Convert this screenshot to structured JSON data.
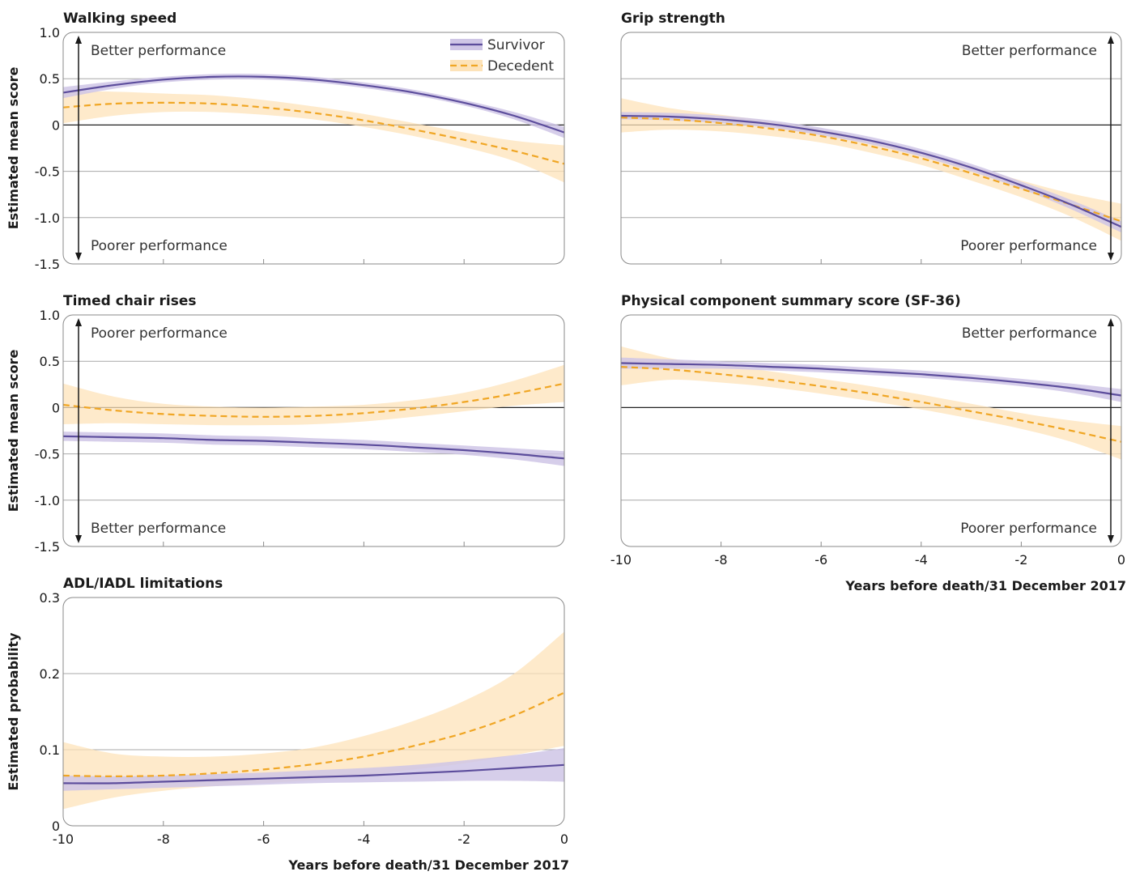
{
  "chart_data": [
    {
      "type": "line",
      "title": "Walking speed",
      "ylabel": "Estimated mean score",
      "xlabel": "",
      "xlim": [
        -10,
        0
      ],
      "ylim": [
        -1.5,
        1.0
      ],
      "y_ticks": [
        "1.0",
        "0.5",
        "0",
        "-0.5",
        "-1.0",
        "-1.5"
      ],
      "y_tick_values": [
        1.0,
        0.5,
        0,
        -0.5,
        -1.0,
        -1.5
      ],
      "x_ticks": [],
      "x_tick_marks": [
        -8,
        -6,
        -4,
        -2
      ],
      "grid": true,
      "arrow": "both",
      "annotations": {
        "top": "Better performance",
        "bottom": "Poorer performance",
        "side": "left"
      },
      "legend": {
        "position": "top-right",
        "entries": [
          "Survivor",
          "Decedent"
        ]
      },
      "series": [
        {
          "name": "Survivor",
          "x": [
            -10,
            -9,
            -8,
            -7,
            -6,
            -5,
            -4,
            -3,
            -2,
            -1,
            0
          ],
          "y": [
            0.35,
            0.43,
            0.49,
            0.52,
            0.52,
            0.49,
            0.43,
            0.35,
            0.24,
            0.1,
            -0.08
          ],
          "lower": [
            0.29,
            0.39,
            0.46,
            0.49,
            0.49,
            0.46,
            0.4,
            0.32,
            0.21,
            0.06,
            -0.14
          ],
          "upper": [
            0.41,
            0.47,
            0.52,
            0.55,
            0.55,
            0.52,
            0.46,
            0.38,
            0.27,
            0.14,
            -0.02
          ]
        },
        {
          "name": "Decedent",
          "x": [
            -10,
            -9,
            -8,
            -7,
            -6,
            -5,
            -4,
            -3,
            -2,
            -1,
            0
          ],
          "y": [
            0.19,
            0.23,
            0.24,
            0.23,
            0.19,
            0.13,
            0.05,
            -0.05,
            -0.16,
            -0.28,
            -0.42
          ],
          "lower": [
            0.02,
            0.1,
            0.14,
            0.14,
            0.11,
            0.06,
            -0.02,
            -0.12,
            -0.24,
            -0.39,
            -0.62
          ],
          "upper": [
            0.36,
            0.36,
            0.34,
            0.32,
            0.27,
            0.2,
            0.12,
            0.02,
            -0.08,
            -0.17,
            -0.22
          ]
        }
      ]
    },
    {
      "type": "line",
      "title": "Grip strength",
      "ylabel": "",
      "xlabel": "",
      "xlim": [
        -10,
        0
      ],
      "ylim": [
        -1.5,
        1.0
      ],
      "y_ticks": [],
      "y_tick_values": [],
      "x_ticks": [],
      "x_tick_marks": [
        -8,
        -6,
        -4,
        -2
      ],
      "grid": true,
      "arrow": "both",
      "annotations": {
        "top": "Better performance",
        "bottom": "Poorer performance",
        "side": "right"
      },
      "series": [
        {
          "name": "Survivor",
          "x": [
            -10,
            -9,
            -8,
            -7,
            -6,
            -5,
            -4,
            -3,
            -2,
            -1,
            0
          ],
          "y": [
            0.1,
            0.09,
            0.06,
            0.01,
            -0.07,
            -0.17,
            -0.3,
            -0.46,
            -0.65,
            -0.86,
            -1.1
          ],
          "lower": [
            0.06,
            0.05,
            0.02,
            -0.03,
            -0.11,
            -0.21,
            -0.34,
            -0.5,
            -0.69,
            -0.91,
            -1.16
          ],
          "upper": [
            0.14,
            0.13,
            0.1,
            0.05,
            -0.03,
            -0.13,
            -0.26,
            -0.42,
            -0.61,
            -0.81,
            -1.04
          ]
        },
        {
          "name": "Decedent",
          "x": [
            -10,
            -9,
            -8,
            -7,
            -6,
            -5,
            -4,
            -3,
            -2,
            -1,
            0
          ],
          "y": [
            0.08,
            0.06,
            0.02,
            -0.04,
            -0.12,
            -0.23,
            -0.36,
            -0.52,
            -0.69,
            -0.86,
            -1.04
          ],
          "lower": [
            -0.08,
            -0.05,
            -0.07,
            -0.12,
            -0.19,
            -0.3,
            -0.43,
            -0.6,
            -0.78,
            -0.99,
            -1.25
          ],
          "upper": [
            0.29,
            0.18,
            0.11,
            0.04,
            -0.05,
            -0.16,
            -0.29,
            -0.44,
            -0.6,
            -0.74,
            -0.85
          ]
        }
      ]
    },
    {
      "type": "line",
      "title": "Timed chair rises",
      "ylabel": "Estimated mean score",
      "xlabel": "",
      "xlim": [
        -10,
        0
      ],
      "ylim": [
        -1.5,
        1.0
      ],
      "y_ticks": [
        "1.0",
        "0.5",
        "0",
        "-0.5",
        "-1.0",
        "-1.5"
      ],
      "y_tick_values": [
        1.0,
        0.5,
        0,
        -0.5,
        -1.0,
        -1.5
      ],
      "x_ticks": [],
      "x_tick_marks": [
        -8,
        -6,
        -4,
        -2
      ],
      "grid": true,
      "arrow": "both",
      "annotations": {
        "top": "Poorer performance",
        "bottom": "Better performance",
        "side": "left"
      },
      "series": [
        {
          "name": "Survivor",
          "x": [
            -10,
            -9,
            -8,
            -7,
            -6,
            -5,
            -4,
            -3,
            -2,
            -1,
            0
          ],
          "y": [
            -0.31,
            -0.32,
            -0.33,
            -0.35,
            -0.36,
            -0.38,
            -0.4,
            -0.43,
            -0.46,
            -0.5,
            -0.55
          ],
          "lower": [
            -0.36,
            -0.37,
            -0.38,
            -0.4,
            -0.41,
            -0.43,
            -0.45,
            -0.48,
            -0.51,
            -0.56,
            -0.63
          ],
          "upper": [
            -0.26,
            -0.27,
            -0.28,
            -0.3,
            -0.31,
            -0.33,
            -0.35,
            -0.38,
            -0.41,
            -0.44,
            -0.47
          ]
        },
        {
          "name": "Decedent",
          "x": [
            -10,
            -9,
            -8,
            -7,
            -6,
            -5,
            -4,
            -3,
            -2,
            -1,
            0
          ],
          "y": [
            0.03,
            -0.03,
            -0.07,
            -0.09,
            -0.1,
            -0.09,
            -0.06,
            -0.01,
            0.06,
            0.15,
            0.26
          ],
          "lower": [
            -0.18,
            -0.17,
            -0.18,
            -0.19,
            -0.19,
            -0.18,
            -0.15,
            -0.1,
            -0.04,
            0.02,
            0.06
          ],
          "upper": [
            0.26,
            0.12,
            0.04,
            0.01,
            0.0,
            0.01,
            0.03,
            0.08,
            0.16,
            0.29,
            0.46
          ]
        }
      ]
    },
    {
      "type": "line",
      "title": "Physical component summary score (SF-36)",
      "ylabel": "",
      "xlabel": "Years before death/31 December 2017",
      "xlim": [
        -10,
        0
      ],
      "ylim": [
        -1.5,
        1.0
      ],
      "y_ticks": [],
      "y_tick_values": [],
      "x_ticks": [
        "-10",
        "-8",
        "-6",
        "-4",
        "-2",
        "0"
      ],
      "x_tick_marks": [
        -8,
        -6,
        -4,
        -2
      ],
      "grid": true,
      "arrow": "both",
      "annotations": {
        "top": "Better performance",
        "bottom": "Poorer performance",
        "side": "right"
      },
      "series": [
        {
          "name": "Survivor",
          "x": [
            -10,
            -9,
            -8,
            -7,
            -6,
            -5,
            -4,
            -3,
            -2,
            -1,
            0
          ],
          "y": [
            0.48,
            0.47,
            0.46,
            0.44,
            0.42,
            0.39,
            0.36,
            0.32,
            0.27,
            0.21,
            0.13
          ],
          "lower": [
            0.42,
            0.42,
            0.42,
            0.4,
            0.38,
            0.35,
            0.32,
            0.28,
            0.23,
            0.16,
            0.06
          ],
          "upper": [
            0.54,
            0.52,
            0.5,
            0.48,
            0.46,
            0.43,
            0.4,
            0.36,
            0.31,
            0.26,
            0.2
          ]
        },
        {
          "name": "Decedent",
          "x": [
            -10,
            -9,
            -8,
            -7,
            -6,
            -5,
            -4,
            -3,
            -2,
            -1,
            0
          ],
          "y": [
            0.44,
            0.41,
            0.36,
            0.3,
            0.23,
            0.15,
            0.06,
            -0.04,
            -0.14,
            -0.25,
            -0.37
          ],
          "lower": [
            0.24,
            0.3,
            0.27,
            0.22,
            0.15,
            0.07,
            -0.02,
            -0.12,
            -0.23,
            -0.37,
            -0.56
          ],
          "upper": [
            0.66,
            0.53,
            0.46,
            0.39,
            0.31,
            0.23,
            0.14,
            0.04,
            -0.06,
            -0.14,
            -0.2
          ]
        }
      ]
    },
    {
      "type": "line",
      "title": "ADL/IADL limitations",
      "ylabel": "Estimated probability",
      "xlabel": "Years before death/31 December 2017",
      "xlim": [
        -10,
        0
      ],
      "ylim": [
        0,
        0.3
      ],
      "y_ticks": [
        "0.3",
        "0.2",
        "0.1",
        "0"
      ],
      "y_tick_values": [
        0.3,
        0.2,
        0.1,
        0
      ],
      "x_ticks": [
        "-10",
        "-8",
        "-6",
        "-4",
        "-2",
        "0"
      ],
      "x_tick_marks": [
        -8,
        -6,
        -4,
        -2
      ],
      "grid": true,
      "arrow": "none",
      "series": [
        {
          "name": "Survivor",
          "x": [
            -10,
            -9,
            -8,
            -7,
            -6,
            -5,
            -4,
            -3,
            -2,
            -1,
            0
          ],
          "y": [
            0.056,
            0.056,
            0.058,
            0.06,
            0.062,
            0.064,
            0.066,
            0.069,
            0.072,
            0.076,
            0.08
          ],
          "lower": [
            0.046,
            0.048,
            0.05,
            0.052,
            0.054,
            0.056,
            0.057,
            0.058,
            0.059,
            0.059,
            0.058
          ],
          "upper": [
            0.066,
            0.065,
            0.066,
            0.068,
            0.07,
            0.073,
            0.076,
            0.08,
            0.086,
            0.093,
            0.102
          ]
        },
        {
          "name": "Decedent",
          "x": [
            -10,
            -9,
            -8,
            -7,
            -6,
            -5,
            -4,
            -3,
            -2,
            -1,
            0
          ],
          "y": [
            0.066,
            0.065,
            0.066,
            0.069,
            0.074,
            0.081,
            0.091,
            0.105,
            0.122,
            0.145,
            0.175
          ],
          "lower": [
            0.022,
            0.037,
            0.046,
            0.052,
            0.056,
            0.06,
            0.066,
            0.074,
            0.082,
            0.093,
            0.105
          ],
          "upper": [
            0.11,
            0.095,
            0.091,
            0.091,
            0.095,
            0.103,
            0.118,
            0.138,
            0.164,
            0.2,
            0.255
          ]
        }
      ]
    }
  ]
}
